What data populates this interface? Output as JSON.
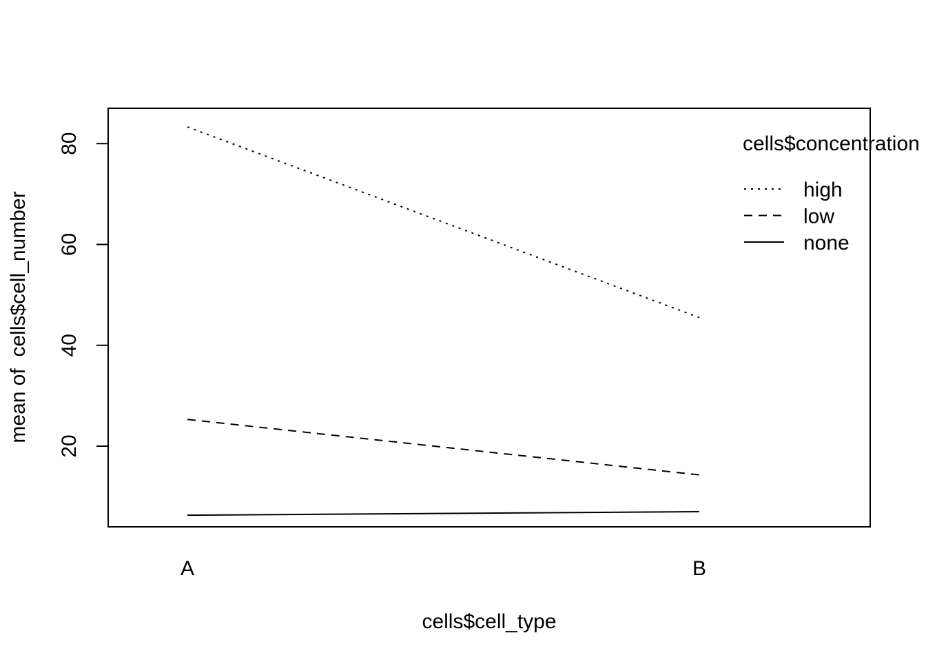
{
  "chart_data": {
    "type": "line",
    "title": "",
    "xlabel": "cells$cell_type",
    "ylabel": "mean of  cells$cell_number",
    "categories": [
      "A",
      "B"
    ],
    "ylim": [
      4,
      87
    ],
    "y_ticks": [
      20,
      40,
      60,
      80
    ],
    "grid": false,
    "legend": {
      "title": "cells$concentration",
      "placement": "top-right"
    },
    "series": [
      {
        "name": "high",
        "line_style": "dotted",
        "values": [
          83.3,
          45.5
        ]
      },
      {
        "name": "low",
        "line_style": "dashed",
        "values": [
          25.3,
          14.3
        ]
      },
      {
        "name": "none",
        "line_style": "solid",
        "values": [
          6.3,
          7.0
        ]
      }
    ],
    "colors": {
      "line": "#000000",
      "background": "#ffffff"
    }
  }
}
